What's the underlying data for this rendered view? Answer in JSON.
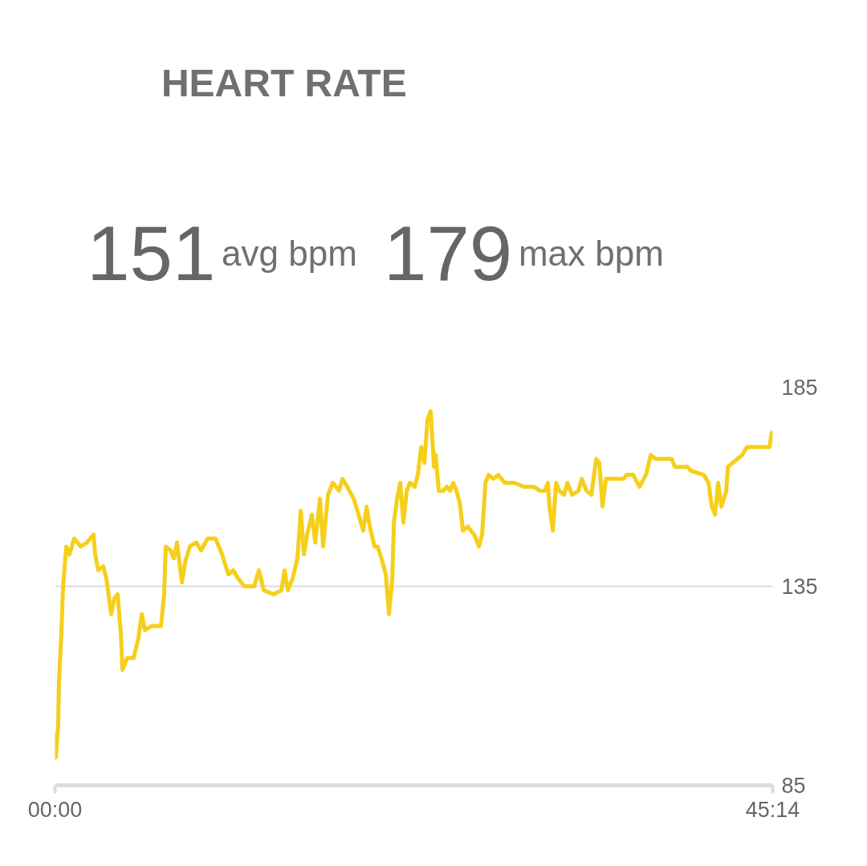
{
  "chart_data": {
    "type": "line",
    "title": "HEART RATE",
    "annotations": [
      "151",
      "avg bpm",
      "179",
      "max bpm"
    ],
    "x": [
      0,
      0.05,
      0.2,
      0.25,
      0.4,
      0.51,
      0.71,
      0.91,
      1.21,
      1.62,
      2.02,
      2.43,
      2.53,
      2.73,
      3.04,
      3.24,
      3.54,
      3.74,
      3.95,
      4.15,
      4.25,
      4.55,
      4.96,
      5.26,
      5.47,
      5.67,
      6.07,
      6.68,
      6.88,
      6.98,
      7.29,
      7.49,
      7.69,
      8.0,
      8.2,
      8.5,
      8.91,
      9.21,
      9.62,
      10.12,
      10.53,
      10.93,
      11.23,
      11.54,
      11.94,
      12.55,
      12.85,
      13.16,
      13.77,
      14.27,
      14.47,
      14.68,
      14.98,
      15.28,
      15.49,
      15.69,
      15.89,
      16.19,
      16.4,
      16.7,
      16.9,
      17.21,
      17.51,
      17.91,
      18.12,
      18.42,
      18.83,
      19.13,
      19.43,
      19.64,
      19.84,
      20.14,
      20.34,
      20.65,
      20.85,
      21.05,
      21.26,
      21.36,
      21.56,
      21.76,
      21.96,
      22.17,
      22.37,
      22.67,
      22.87,
      23.08,
      23.28,
      23.48,
      23.68,
      23.89,
      23.99,
      24.19,
      24.49,
      24.7,
      24.9,
      25.1,
      25.3,
      25.51,
      25.71,
      26.01,
      26.42,
      26.72,
      26.92,
      27.13,
      27.33,
      27.63,
      27.94,
      28.34,
      28.95,
      29.55,
      30.16,
      30.57,
      30.87,
      31.07,
      31.17,
      31.38,
      31.58,
      31.78,
      32.09,
      32.29,
      32.59,
      33.0,
      33.2,
      33.5,
      33.81,
      34.11,
      34.31,
      34.51,
      34.72,
      35.02,
      35.83,
      36.03,
      36.44,
      36.84,
      37.25,
      37.55,
      37.85,
      38.87,
      39.07,
      39.88,
      40.08,
      40.89,
      41.19,
      41.4,
      41.6,
      41.8,
      42.0,
      42.31,
      42.41,
      42.71,
      43.02,
      43.32,
      43.62,
      45.04,
      45.14,
      45.23
    ],
    "series": [
      {
        "color": "#f6cf1b",
        "values": [
          98,
          92,
          100,
          111,
          123,
          135,
          145,
          143,
          147,
          145,
          146,
          148,
          143,
          139,
          140,
          137,
          128,
          132,
          133,
          123,
          114,
          117,
          117,
          122,
          128,
          124,
          125,
          125,
          133,
          145,
          144,
          142,
          146,
          136,
          141,
          145,
          146,
          144,
          147,
          147,
          143,
          138,
          139,
          137,
          135,
          135,
          139,
          134,
          133,
          134,
          139,
          134,
          137,
          142,
          154,
          143,
          148,
          153,
          146,
          157,
          145,
          158,
          161,
          159,
          162,
          160,
          157,
          153,
          149,
          155,
          150,
          145,
          145,
          141,
          138,
          128,
          137,
          151,
          157,
          161,
          151,
          159,
          161,
          160,
          163,
          170,
          166,
          177,
          179,
          165,
          168,
          159,
          159,
          160,
          159,
          161,
          159,
          156,
          149,
          150,
          148,
          145,
          148,
          161,
          163,
          162,
          163,
          161,
          161,
          160,
          160,
          159,
          159,
          161,
          155,
          149,
          161,
          159,
          158,
          161,
          158,
          159,
          162,
          159,
          158,
          167,
          166,
          155,
          162,
          162,
          162,
          163,
          163,
          160,
          163,
          168,
          167,
          167,
          165,
          165,
          164,
          163,
          161,
          155,
          153,
          161,
          155,
          159,
          165,
          166,
          167,
          168,
          170,
          170,
          173,
          174
        ]
      }
    ],
    "xlim": [
      0,
      45.2333
    ],
    "xticks": [
      {
        "value": 0,
        "label": "00:00"
      },
      {
        "value": 45.2333,
        "label": "45:14"
      }
    ],
    "ylim": [
      85,
      185
    ],
    "yticks": [
      85,
      135,
      185
    ],
    "grid": "y",
    "marker": "none",
    "line_style": "solid"
  }
}
